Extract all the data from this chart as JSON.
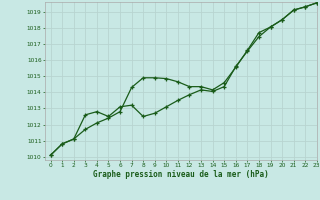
{
  "title": "Graphe pression niveau de la mer (hPa)",
  "background_color": "#c8e8e4",
  "grid_color": "#b8d4d0",
  "line_color": "#1a5c1a",
  "xlim": [
    -0.5,
    23
  ],
  "ylim": [
    1009.8,
    1019.6
  ],
  "yticks": [
    1010,
    1011,
    1012,
    1013,
    1014,
    1015,
    1016,
    1017,
    1018,
    1019
  ],
  "xticks": [
    0,
    1,
    2,
    3,
    4,
    5,
    6,
    7,
    8,
    9,
    10,
    11,
    12,
    13,
    14,
    15,
    16,
    17,
    18,
    19,
    20,
    21,
    22,
    23
  ],
  "series1_x": [
    0,
    1,
    2,
    3,
    4,
    5,
    6,
    7,
    8,
    9,
    10,
    11,
    12,
    13,
    14,
    15,
    16,
    17,
    18,
    19,
    20,
    21,
    22,
    23
  ],
  "series1_y": [
    1010.1,
    1010.8,
    1011.1,
    1011.7,
    1012.1,
    1012.4,
    1012.8,
    1014.3,
    1014.9,
    1014.9,
    1014.85,
    1014.65,
    1014.35,
    1014.35,
    1014.15,
    1014.6,
    1015.55,
    1016.6,
    1017.7,
    1018.05,
    1018.5,
    1019.1,
    1019.3,
    1019.55
  ],
  "series2_x": [
    0,
    1,
    2,
    3,
    4,
    5,
    6,
    7,
    8,
    9,
    10,
    11,
    12,
    13,
    14,
    15,
    16,
    17,
    18,
    19,
    20,
    21,
    22,
    23
  ],
  "series2_y": [
    1010.1,
    1010.8,
    1011.1,
    1012.6,
    1012.8,
    1012.5,
    1013.1,
    1013.2,
    1012.5,
    1012.7,
    1013.1,
    1013.5,
    1013.85,
    1014.15,
    1014.05,
    1014.35,
    1015.6,
    1016.55,
    1017.45,
    1018.05,
    1018.5,
    1019.1,
    1019.3,
    1019.55
  ],
  "marker": "+",
  "markersize": 3.5,
  "linewidth": 0.9
}
